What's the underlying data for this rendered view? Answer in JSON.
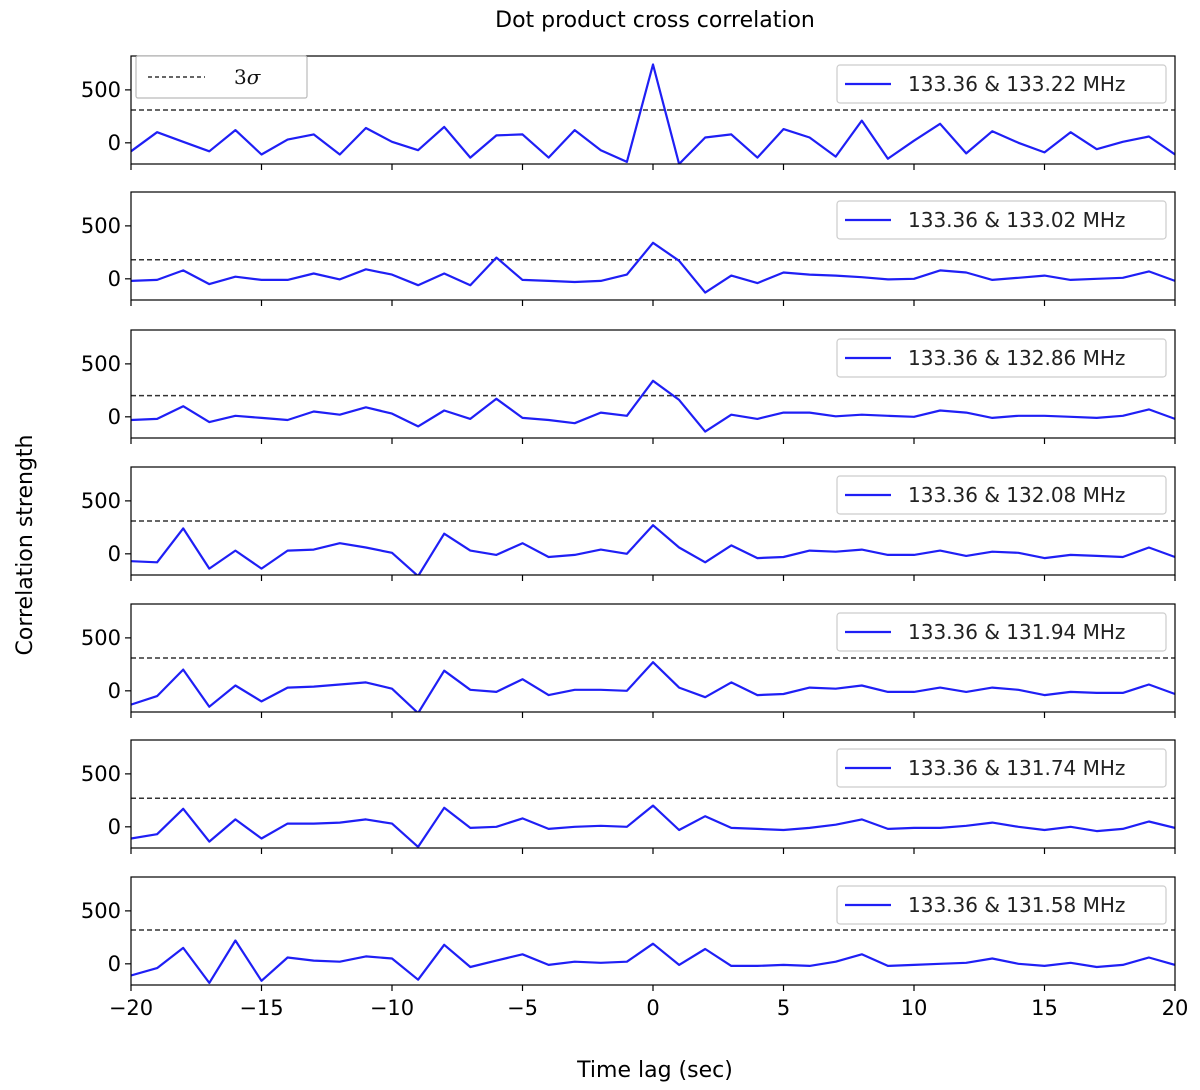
{
  "chart_data": {
    "type": "line",
    "title": "Dot product cross correlation",
    "xlabel": "Time lag (sec)",
    "ylabel": "Correlation strength",
    "xlim": [
      -20,
      20
    ],
    "ylim": [
      -200,
      820
    ],
    "xticks": [
      -20,
      -15,
      -10,
      -5,
      0,
      5,
      10,
      15,
      20
    ],
    "xtick_labels": [
      "−20",
      "−15",
      "−10",
      "−5",
      "0",
      "5",
      "10",
      "15",
      "20"
    ],
    "yticks": [
      0,
      500
    ],
    "ytick_labels": [
      "0",
      "500"
    ],
    "grid": false,
    "line_color": "#1f1ff5",
    "threshold_color": "#333333",
    "legend_sigma_label": "3",
    "legend_sigma_symbol": "σ",
    "x": [
      -20,
      -19,
      -18,
      -17,
      -16,
      -15,
      -14,
      -13,
      -12,
      -11,
      -10,
      -9,
      -8,
      -7,
      -6,
      -5,
      -4,
      -3,
      -2,
      -1,
      0,
      1,
      2,
      3,
      4,
      5,
      6,
      7,
      8,
      9,
      10,
      11,
      12,
      13,
      14,
      15,
      16,
      17,
      18,
      19,
      20
    ],
    "panels": [
      {
        "name": "133.36 & 133.22 MHz",
        "threshold": 310,
        "values": [
          -80,
          100,
          10,
          -80,
          120,
          -110,
          30,
          80,
          -110,
          140,
          10,
          -70,
          150,
          -140,
          70,
          80,
          -140,
          120,
          -70,
          -180,
          740,
          -200,
          50,
          80,
          -140,
          130,
          50,
          -130,
          210,
          -150,
          20,
          180,
          -100,
          110,
          0,
          -90,
          100,
          -60,
          10,
          60,
          -110
        ]
      },
      {
        "name": "133.36 & 133.02 MHz",
        "threshold": 180,
        "values": [
          -20,
          -10,
          80,
          -50,
          20,
          -10,
          -10,
          50,
          -5,
          90,
          40,
          -60,
          50,
          -60,
          200,
          -10,
          -20,
          -30,
          -20,
          40,
          340,
          170,
          -130,
          30,
          -40,
          60,
          40,
          30,
          15,
          -5,
          0,
          80,
          60,
          -10,
          10,
          30,
          -10,
          0,
          10,
          70,
          -20
        ]
      },
      {
        "name": "133.36 & 132.86 MHz",
        "threshold": 200,
        "values": [
          -30,
          -20,
          100,
          -50,
          10,
          -10,
          -30,
          50,
          20,
          90,
          30,
          -90,
          60,
          -20,
          170,
          -10,
          -30,
          -60,
          40,
          10,
          340,
          160,
          -140,
          20,
          -20,
          40,
          40,
          5,
          20,
          10,
          0,
          60,
          40,
          -10,
          10,
          10,
          0,
          -10,
          10,
          70,
          -20
        ]
      },
      {
        "name": "133.36 & 132.08 MHz",
        "threshold": 310,
        "values": [
          -70,
          -80,
          240,
          -140,
          30,
          -140,
          30,
          40,
          100,
          60,
          10,
          -210,
          190,
          30,
          -10,
          100,
          -30,
          -10,
          40,
          0,
          270,
          60,
          -80,
          80,
          -40,
          -30,
          30,
          20,
          40,
          -10,
          -10,
          30,
          -20,
          20,
          10,
          -40,
          -10,
          -20,
          -30,
          60,
          -30
        ]
      },
      {
        "name": "133.36 & 131.94 MHz",
        "threshold": 310,
        "values": [
          -130,
          -50,
          200,
          -150,
          50,
          -100,
          30,
          40,
          60,
          80,
          20,
          -210,
          190,
          10,
          -10,
          110,
          -40,
          10,
          10,
          0,
          270,
          30,
          -60,
          80,
          -40,
          -30,
          30,
          20,
          50,
          -10,
          -10,
          30,
          -10,
          30,
          10,
          -40,
          -10,
          -20,
          -20,
          60,
          -30
        ]
      },
      {
        "name": "133.36 & 131.74 MHz",
        "threshold": 270,
        "values": [
          -110,
          -70,
          170,
          -140,
          70,
          -110,
          30,
          30,
          40,
          70,
          30,
          -190,
          180,
          -10,
          0,
          80,
          -20,
          0,
          10,
          0,
          200,
          -30,
          100,
          -10,
          -20,
          -30,
          -10,
          20,
          70,
          -20,
          -10,
          -10,
          10,
          40,
          0,
          -30,
          0,
          -40,
          -20,
          50,
          -10
        ]
      },
      {
        "name": "133.36 & 131.58 MHz",
        "threshold": 320,
        "values": [
          -110,
          -40,
          150,
          -180,
          220,
          -160,
          60,
          30,
          20,
          70,
          50,
          -150,
          180,
          -30,
          30,
          90,
          -10,
          20,
          10,
          20,
          190,
          -10,
          140,
          -20,
          -20,
          -10,
          -20,
          20,
          90,
          -20,
          -10,
          0,
          10,
          50,
          0,
          -20,
          10,
          -30,
          -10,
          60,
          -10
        ]
      }
    ]
  }
}
